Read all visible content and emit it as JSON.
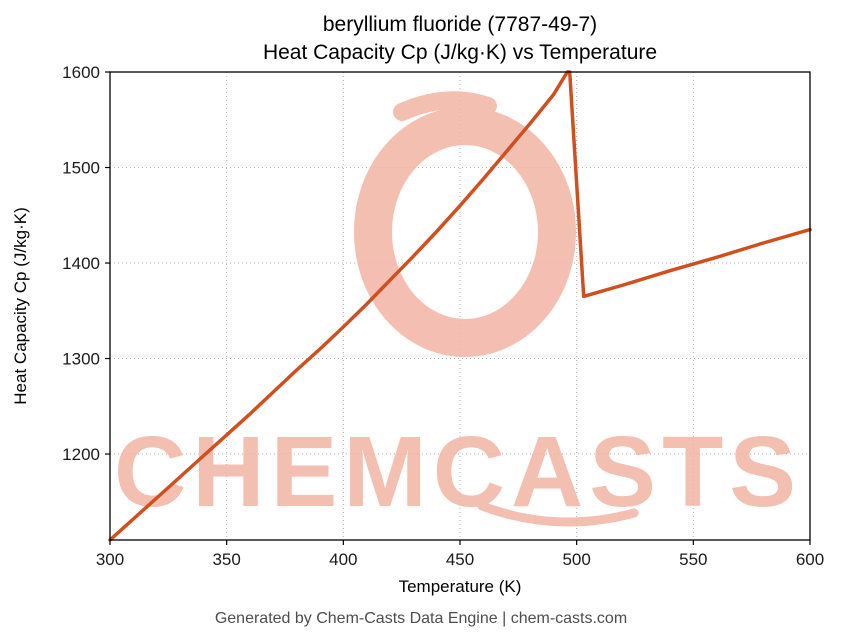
{
  "page": {
    "footer": "Generated by Chem-Casts Data Engine | chem-casts.com"
  },
  "watermark": {
    "text": "CHEMCASTS",
    "color": "#f2b4a4"
  },
  "chart_data": {
    "type": "line",
    "title": "beryllium fluoride (7787-49-7)",
    "subtitle": "Heat Capacity Cp (J/kg·K) vs Temperature",
    "xlabel": "Temperature (K)",
    "ylabel": "Heat Capacity Cp (J/kg·K)",
    "xlim": [
      300,
      600
    ],
    "ylim": [
      1110,
      1600
    ],
    "xticks": [
      300,
      350,
      400,
      450,
      500,
      550,
      600
    ],
    "yticks": [
      1200,
      1300,
      1400,
      1500,
      1600
    ],
    "grid": true,
    "legend": "none",
    "line_color": "#d14f1f",
    "line_width": 3.5,
    "series": [
      {
        "name": "Heat Capacity Cp",
        "points": [
          [
            300,
            1110
          ],
          [
            310,
            1132
          ],
          [
            320,
            1154
          ],
          [
            330,
            1176
          ],
          [
            340,
            1198
          ],
          [
            350,
            1220
          ],
          [
            360,
            1242
          ],
          [
            370,
            1265
          ],
          [
            380,
            1288
          ],
          [
            390,
            1310
          ],
          [
            400,
            1333
          ],
          [
            410,
            1357
          ],
          [
            420,
            1382
          ],
          [
            430,
            1407
          ],
          [
            440,
            1433
          ],
          [
            450,
            1460
          ],
          [
            460,
            1488
          ],
          [
            470,
            1517
          ],
          [
            480,
            1546
          ],
          [
            490,
            1576
          ],
          [
            496,
            1600
          ],
          [
            497,
            1600
          ],
          [
            503,
            1365
          ],
          [
            510,
            1370
          ],
          [
            520,
            1377
          ],
          [
            540,
            1392
          ],
          [
            560,
            1406
          ],
          [
            580,
            1421
          ],
          [
            600,
            1435
          ]
        ]
      }
    ]
  }
}
